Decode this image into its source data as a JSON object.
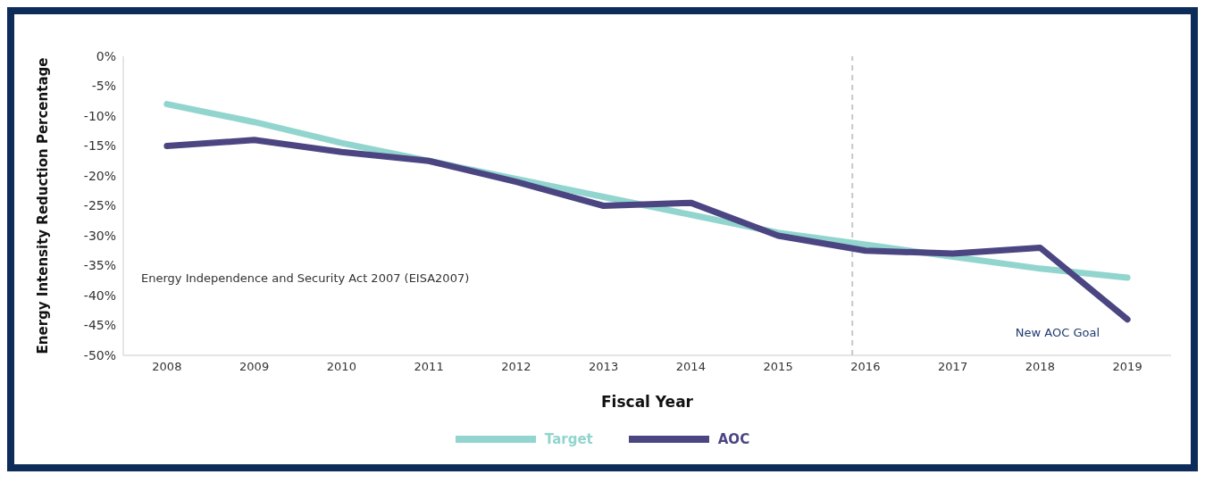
{
  "chart_data": {
    "type": "line",
    "xlabel": "Fiscal Year",
    "ylabel": "Energy Intensity Reduction Percentage",
    "x": [
      2008,
      2009,
      2010,
      2011,
      2012,
      2013,
      2014,
      2015,
      2016,
      2017,
      2018,
      2019
    ],
    "xlim": [
      2007.5,
      2019.5
    ],
    "xticks": [
      2008,
      2009,
      2010,
      2011,
      2012,
      2013,
      2014,
      2015,
      2016,
      2017,
      2018,
      2019
    ],
    "ylim": [
      -50,
      0
    ],
    "yticks": [
      {
        "value": 0,
        "label": "0%"
      },
      {
        "value": -5,
        "label": "-5%"
      },
      {
        "value": -10,
        "label": "-10%"
      },
      {
        "value": -15,
        "label": "-15%"
      },
      {
        "value": -20,
        "label": "-20%"
      },
      {
        "value": -25,
        "label": "-25%"
      },
      {
        "value": -30,
        "label": "-30%"
      },
      {
        "value": -35,
        "label": "-35%"
      },
      {
        "value": -40,
        "label": "-40%"
      },
      {
        "value": -45,
        "label": "-45%"
      },
      {
        "value": -50,
        "label": "-50%"
      }
    ],
    "series": [
      {
        "name": "Target",
        "color": "#92d5cf",
        "values": [
          -8,
          -11,
          -14.5,
          -17.5,
          -20.5,
          -23.5,
          -26.5,
          -29.5,
          -31.5,
          -33.5,
          -35.5,
          -37
        ]
      },
      {
        "name": "AOC",
        "color": "#4b4682",
        "values": [
          -15,
          -14,
          -16,
          -17.5,
          -21,
          -25,
          -24.5,
          -30,
          -32.5,
          -33,
          -32,
          -44
        ]
      }
    ],
    "ref_lines": [
      {
        "axis": "x",
        "value": 2015.85,
        "color": "#c8c8c8",
        "line_style": "dashed"
      }
    ],
    "annotations": [
      "Energy Independence and Security Act 2007 (EISA2007)",
      "New AOC Goal"
    ],
    "legend": "bottom",
    "grid": false,
    "marker": "none",
    "line_style": "solid"
  }
}
